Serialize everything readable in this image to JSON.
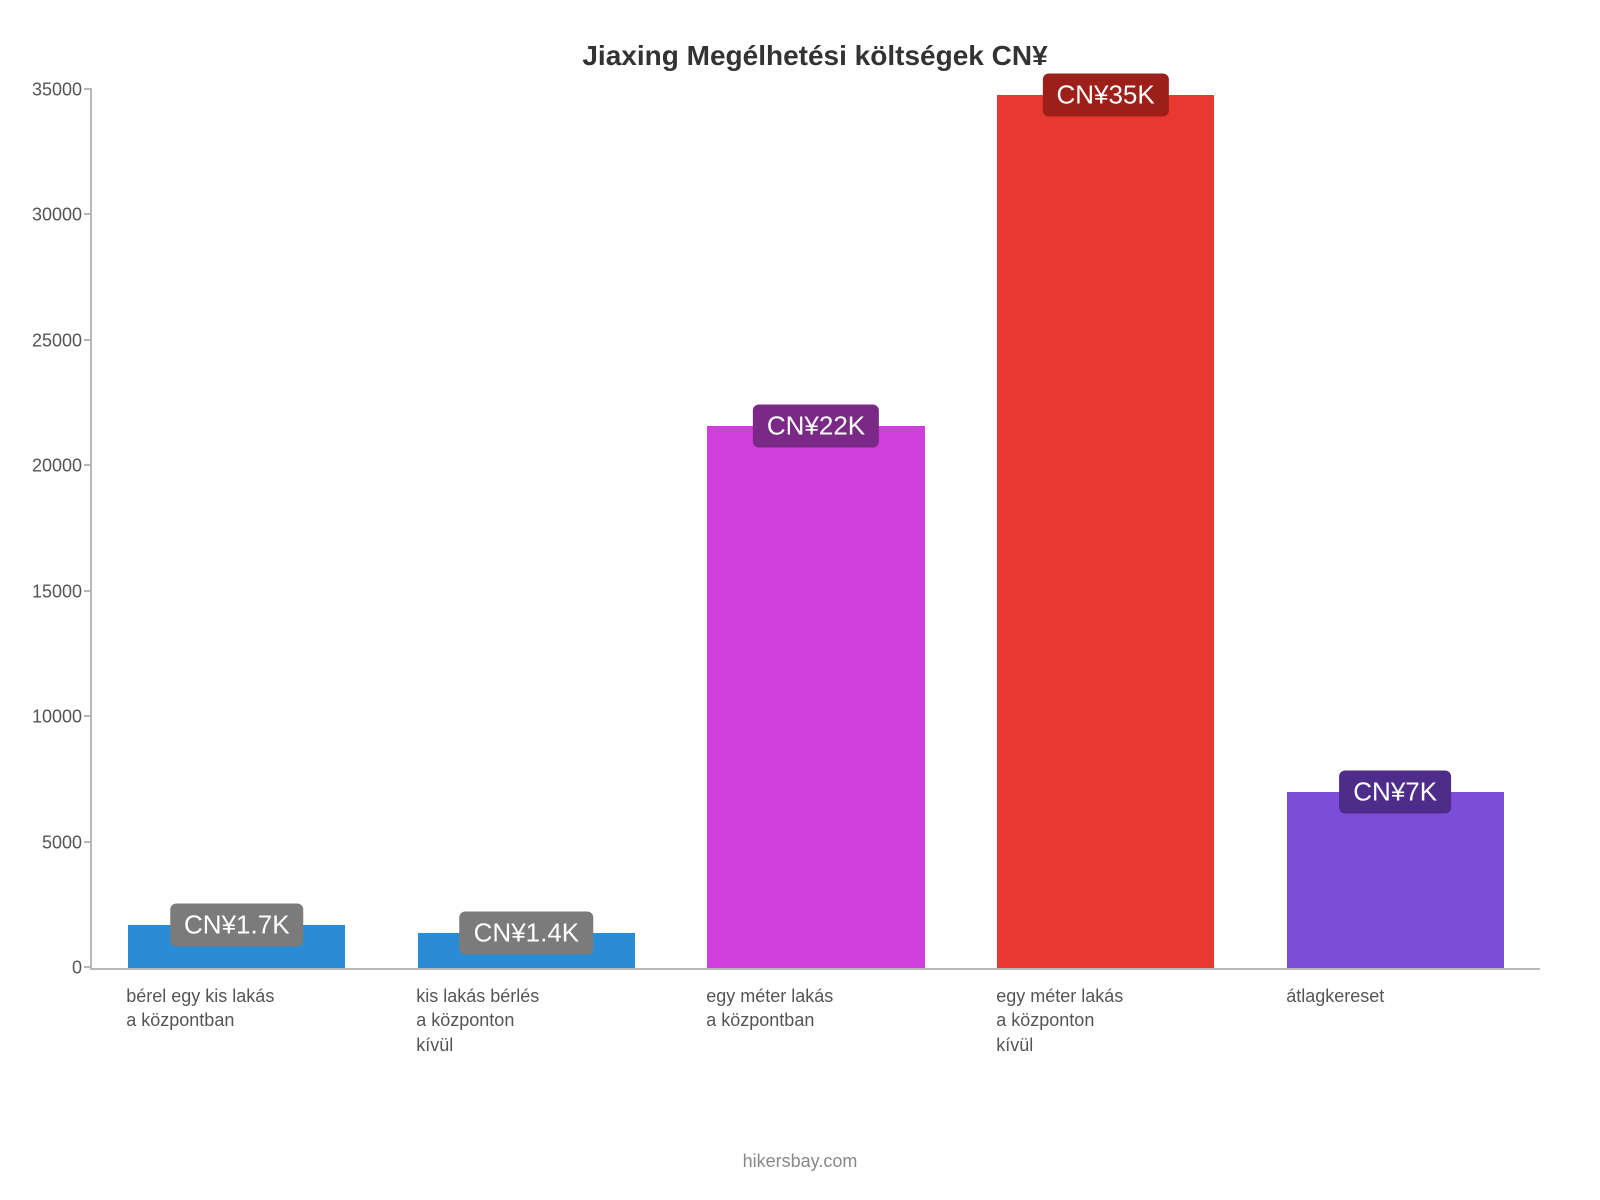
{
  "chart": {
    "type": "bar",
    "title": "Jiaxing Megélhetési költségek CN¥",
    "title_fontsize": 28,
    "title_color": "#333333",
    "background_color": "#ffffff",
    "axis_color": "#b8b8b8",
    "ylim": [
      0,
      35000
    ],
    "yticks": [
      0,
      5000,
      10000,
      15000,
      20000,
      25000,
      30000,
      35000
    ],
    "ytick_fontsize": 18,
    "ytick_color": "#555555",
    "xlabel_fontsize": 18,
    "xlabel_color": "#555555",
    "bar_width_ratio": 0.75,
    "value_label_fontsize": 26,
    "bars": [
      {
        "category": "bérel egy kis lakás\na központban",
        "value": 1700,
        "display": "CN¥1.7K",
        "bar_color": "#2b8cd6",
        "label_bg": "#7b7b7b",
        "label_text_color": "#ffffff"
      },
      {
        "category": "kis lakás bérlés\na központon\nkívül",
        "value": 1400,
        "display": "CN¥1.4K",
        "bar_color": "#2b8cd6",
        "label_bg": "#7b7b7b",
        "label_text_color": "#ffffff"
      },
      {
        "category": "egy méter lakás\na központban",
        "value": 21600,
        "display": "CN¥22K",
        "bar_color": "#cf3fdc",
        "label_bg": "#7a2a86",
        "label_text_color": "#ffffff"
      },
      {
        "category": "egy méter lakás\na központon\nkívül",
        "value": 34800,
        "display": "CN¥35K",
        "bar_color": "#e8382f",
        "label_bg": "#9c1f19",
        "label_text_color": "#ffffff"
      },
      {
        "category": "átlagkereset",
        "value": 7000,
        "display": "CN¥7K",
        "bar_color": "#7d4cd9",
        "label_bg": "#4d2c8a",
        "label_text_color": "#ffffff"
      }
    ],
    "attribution": "hikersbay.com",
    "attribution_fontsize": 18,
    "attribution_color": "#888888"
  }
}
